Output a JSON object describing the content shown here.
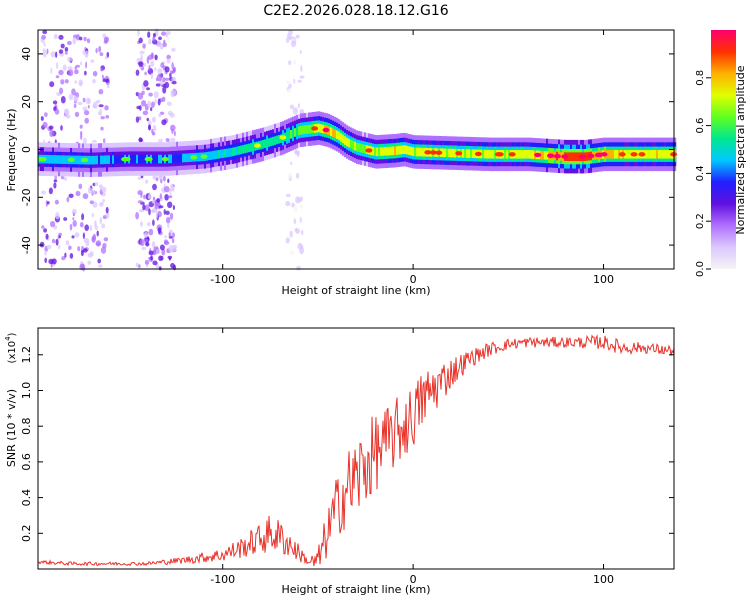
{
  "title": "C2E2.2026.028.18.12.G16",
  "colors": {
    "line": "#e8322a",
    "background": "#ffffff",
    "axis": "#000000",
    "colormap": [
      "#f4f4f4",
      "#dcc8ff",
      "#b070ff",
      "#6010e0",
      "#2020ff",
      "#00c8ff",
      "#00e890",
      "#60ff20",
      "#e0ff00",
      "#ffb000",
      "#ff3000",
      "#ff0070"
    ]
  },
  "chart_data": [
    {
      "type": "heatmap",
      "xlabel": "Height of straight line (km)",
      "ylabel": "Frequency (Hz)",
      "xlim": [
        -197,
        137
      ],
      "ylim": [
        -50,
        50
      ],
      "xticks": [
        -100,
        0,
        100
      ],
      "yticks": [
        -40,
        -20,
        0,
        20,
        40
      ],
      "colorbar": {
        "label": "Normalized spectral amplitude",
        "range": [
          0,
          1
        ],
        "ticks": [
          "0.0",
          "0.2",
          "0.4",
          "0.6",
          "0.8"
        ]
      },
      "ridge": {
        "x": [
          -197,
          -170,
          -150,
          -130,
          -110,
          -95,
          -80,
          -70,
          -60,
          -50,
          -45,
          -40,
          -35,
          -30,
          -25,
          -20,
          -10,
          -5,
          0,
          20,
          40,
          60,
          70,
          80,
          90,
          100,
          110,
          120,
          137
        ],
        "y": [
          -4,
          -4.5,
          -4,
          -4,
          -3,
          -1,
          2,
          4.5,
          8,
          9,
          8,
          6,
          3,
          1,
          0,
          -1,
          -0.5,
          0,
          -1,
          -1.5,
          -2,
          -2,
          -2.5,
          -3,
          -3,
          -2,
          -2,
          -2,
          -2
        ],
        "amplitude": [
          0.45,
          0.45,
          0.4,
          0.4,
          0.45,
          0.5,
          0.55,
          0.55,
          0.6,
          0.7,
          0.8,
          0.75,
          0.7,
          0.65,
          0.65,
          0.7,
          0.75,
          0.7,
          0.7,
          0.7,
          0.7,
          0.72,
          0.8,
          0.9,
          0.9,
          0.8,
          0.75,
          0.75,
          0.75
        ]
      },
      "scatter_regions": [
        {
          "x_range": [
            -195,
            -160
          ],
          "y_range": [
            -50,
            50
          ],
          "amplitude": 0.15
        },
        {
          "x_range": [
            -145,
            -125
          ],
          "y_range": [
            -50,
            50
          ],
          "amplitude": 0.15
        },
        {
          "x_range": [
            -66,
            -58
          ],
          "y_range": [
            -50,
            50
          ],
          "amplitude": 0.07
        }
      ]
    },
    {
      "type": "line",
      "xlabel": "Height of straight line (km)",
      "ylabel": "SNR (10 * v/v)",
      "scale_label": "(x10",
      "scale_exponent": "4",
      "xlim": [
        -197,
        137
      ],
      "ylim": [
        0,
        1.35
      ],
      "xticks": [
        -100,
        0,
        100
      ],
      "yticks": [
        0.2,
        0.4,
        0.6,
        0.8,
        1.0,
        1.2
      ],
      "series": [
        {
          "name": "SNR",
          "x": [
            -197,
            -180,
            -160,
            -140,
            -120,
            -100,
            -90,
            -80,
            -75,
            -70,
            -65,
            -60,
            -55,
            -50,
            -45,
            -40,
            -35,
            -30,
            -25,
            -20,
            -15,
            -10,
            -5,
            0,
            5,
            10,
            15,
            20,
            30,
            40,
            50,
            60,
            80,
            100,
            110,
            120,
            137
          ],
          "y": [
            0.04,
            0.03,
            0.03,
            0.03,
            0.05,
            0.08,
            0.12,
            0.17,
            0.2,
            0.18,
            0.14,
            0.09,
            0.04,
            0.04,
            0.2,
            0.35,
            0.45,
            0.5,
            0.58,
            0.65,
            0.7,
            0.75,
            0.8,
            0.85,
            0.95,
            1.0,
            1.05,
            1.1,
            1.18,
            1.23,
            1.26,
            1.27,
            1.27,
            1.27,
            1.24,
            1.24,
            1.22
          ],
          "noise": [
            0.01,
            0.01,
            0.01,
            0.01,
            0.02,
            0.04,
            0.06,
            0.09,
            0.11,
            0.1,
            0.08,
            0.05,
            0.02,
            0.08,
            0.14,
            0.18,
            0.22,
            0.25,
            0.24,
            0.22,
            0.2,
            0.2,
            0.2,
            0.18,
            0.17,
            0.15,
            0.12,
            0.09,
            0.05,
            0.04,
            0.03,
            0.03,
            0.03,
            0.04,
            0.04,
            0.03,
            0.03
          ]
        }
      ]
    }
  ]
}
